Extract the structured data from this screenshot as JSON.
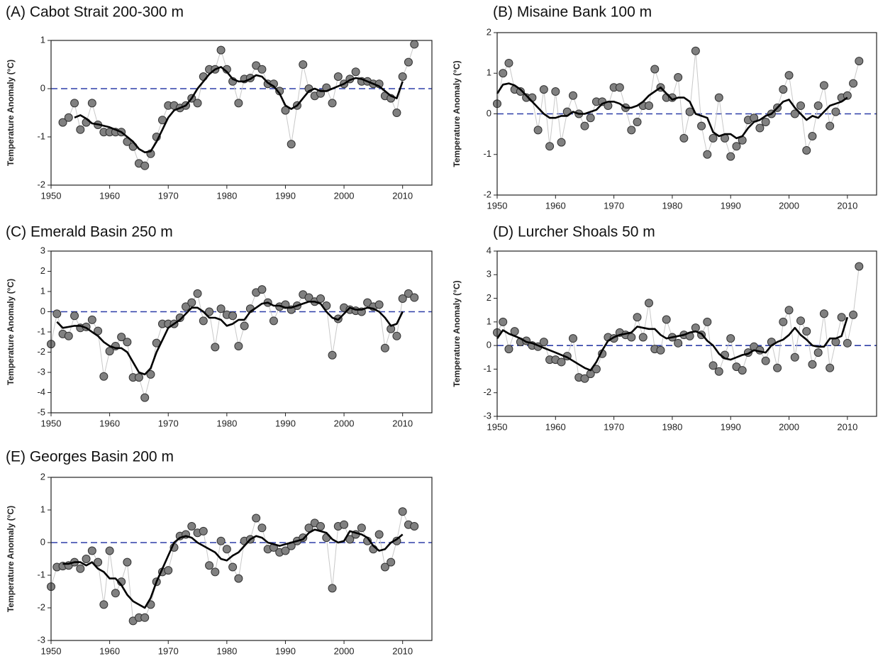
{
  "chart_data": [
    {
      "type": "line",
      "title": "(A) Cabot Strait  200-300 m",
      "y_label": "Temperature Anomaly (°C)",
      "x": [
        1950,
        1951,
        1952,
        1953,
        1954,
        1955,
        1956,
        1957,
        1958,
        1959,
        1960,
        1961,
        1962,
        1963,
        1964,
        1965,
        1966,
        1967,
        1968,
        1969,
        1970,
        1971,
        1972,
        1973,
        1974,
        1975,
        1976,
        1977,
        1978,
        1979,
        1980,
        1981,
        1982,
        1983,
        1984,
        1985,
        1986,
        1987,
        1988,
        1989,
        1990,
        1991,
        1992,
        1993,
        1994,
        1995,
        1996,
        1997,
        1998,
        1999,
        2000,
        2001,
        2002,
        2003,
        2004,
        2005,
        2006,
        2007,
        2008,
        2009,
        2010,
        2011,
        2012
      ],
      "series": [
        {
          "color": "#808080",
          "line_color": "#c8c8c8",
          "values": [
            null,
            null,
            -0.7,
            -0.6,
            -0.3,
            -0.85,
            -0.7,
            -0.3,
            -0.75,
            -0.9,
            -0.9,
            -0.9,
            -0.9,
            -1.1,
            -1.2,
            -1.55,
            -1.6,
            -1.35,
            -1.0,
            -0.65,
            -0.35,
            -0.35,
            -0.4,
            -0.35,
            -0.2,
            -0.3,
            0.25,
            0.4,
            0.4,
            0.8,
            0.4,
            0.15,
            -0.3,
            0.2,
            0.22,
            0.48,
            0.4,
            0.1,
            0.1,
            -0.05,
            -0.45,
            -1.15,
            -0.35,
            0.5,
            0.0,
            -0.15,
            -0.1,
            0.02,
            -0.3,
            0.25,
            0.1,
            0.2,
            0.35,
            0.15,
            0.15,
            0.1,
            0.1,
            -0.15,
            -0.2,
            -0.5,
            0.25,
            0.55,
            0.92
          ]
        },
        {
          "color": "#000000",
          "values": [
            null,
            null,
            null,
            null,
            -0.6,
            -0.55,
            -0.62,
            -0.72,
            -0.74,
            -0.77,
            -0.8,
            -0.85,
            -0.9,
            -1.0,
            -1.1,
            -1.25,
            -1.32,
            -1.3,
            -1.1,
            -0.85,
            -0.6,
            -0.45,
            -0.4,
            -0.35,
            -0.2,
            0.0,
            0.15,
            0.3,
            0.4,
            0.45,
            0.35,
            0.2,
            0.15,
            0.15,
            0.2,
            0.28,
            0.25,
            0.12,
            0.05,
            -0.1,
            -0.35,
            -0.42,
            -0.35,
            -0.2,
            -0.05,
            0.0,
            -0.05,
            -0.05,
            0.0,
            0.05,
            0.1,
            0.18,
            0.22,
            0.2,
            0.15,
            0.1,
            0.05,
            -0.05,
            -0.15,
            -0.2,
            0.15,
            null,
            null
          ]
        }
      ],
      "xlim": [
        1950,
        2015
      ],
      "xticks": [
        1950,
        1960,
        1970,
        1980,
        1990,
        2000,
        2010
      ],
      "ylim": [
        -2,
        1
      ],
      "yticks": [
        -2,
        -1,
        0,
        1
      ],
      "reference_line": 0,
      "reference_color": "#2e3fa8"
    },
    {
      "type": "line",
      "title": "(B) Misaine Bank  100 m",
      "y_label": "Temperature Anomaly (°C)",
      "x": [
        1950,
        1951,
        1952,
        1953,
        1954,
        1955,
        1956,
        1957,
        1958,
        1959,
        1960,
        1961,
        1962,
        1963,
        1964,
        1965,
        1966,
        1967,
        1968,
        1969,
        1970,
        1971,
        1972,
        1973,
        1974,
        1975,
        1976,
        1977,
        1978,
        1979,
        1980,
        1981,
        1982,
        1983,
        1984,
        1985,
        1986,
        1987,
        1988,
        1989,
        1990,
        1991,
        1992,
        1993,
        1994,
        1995,
        1996,
        1997,
        1998,
        1999,
        2000,
        2001,
        2002,
        2003,
        2004,
        2005,
        2006,
        2007,
        2008,
        2009,
        2010,
        2011,
        2012
      ],
      "series": [
        {
          "color": "#808080",
          "line_color": "#c8c8c8",
          "values": [
            0.25,
            1.0,
            1.25,
            0.6,
            0.55,
            0.4,
            0.4,
            -0.4,
            0.6,
            -0.8,
            0.55,
            -0.7,
            0.05,
            0.45,
            0.0,
            -0.3,
            -0.1,
            0.3,
            0.3,
            0.2,
            0.65,
            0.65,
            0.15,
            -0.4,
            -0.2,
            0.2,
            0.2,
            1.1,
            0.65,
            0.4,
            0.4,
            0.9,
            -0.6,
            0.05,
            1.55,
            -0.3,
            -1.0,
            -0.6,
            0.4,
            -0.6,
            -1.05,
            -0.8,
            -0.65,
            -0.15,
            -0.1,
            -0.35,
            -0.2,
            0.0,
            0.15,
            0.6,
            0.95,
            0.0,
            0.2,
            -0.9,
            -0.55,
            0.2,
            0.7,
            -0.3,
            0.05,
            0.4,
            0.45,
            0.75,
            1.3
          ]
        },
        {
          "color": "#000000",
          "values": [
            0.5,
            0.72,
            0.75,
            0.7,
            0.6,
            0.45,
            0.3,
            0.15,
            0.0,
            -0.1,
            -0.1,
            -0.05,
            -0.05,
            0.05,
            0.0,
            0.0,
            0.05,
            0.1,
            0.25,
            0.3,
            0.3,
            0.25,
            0.15,
            0.15,
            0.2,
            0.3,
            0.45,
            0.55,
            0.65,
            0.5,
            0.35,
            0.4,
            0.4,
            0.3,
            0.0,
            -0.05,
            -0.1,
            -0.45,
            -0.55,
            -0.5,
            -0.5,
            -0.6,
            -0.55,
            -0.35,
            -0.2,
            -0.15,
            -0.05,
            0.0,
            0.15,
            0.3,
            0.35,
            0.15,
            0.0,
            -0.15,
            -0.05,
            -0.1,
            0.05,
            0.2,
            0.25,
            0.3,
            0.4,
            null,
            null
          ]
        }
      ],
      "xlim": [
        1950,
        2015
      ],
      "xticks": [
        1950,
        1960,
        1970,
        1980,
        1990,
        2000,
        2010
      ],
      "ylim": [
        -2,
        2
      ],
      "yticks": [
        -2,
        -1,
        0,
        1,
        2
      ],
      "reference_line": 0,
      "reference_color": "#2e3fa8"
    },
    {
      "type": "line",
      "title": "(C) Emerald Basin  250 m",
      "y_label": "Temperature Anomaly (°C)",
      "x": [
        1950,
        1951,
        1952,
        1953,
        1954,
        1955,
        1956,
        1957,
        1958,
        1959,
        1960,
        1961,
        1962,
        1963,
        1964,
        1965,
        1966,
        1967,
        1968,
        1969,
        1970,
        1971,
        1972,
        1973,
        1974,
        1975,
        1976,
        1977,
        1978,
        1979,
        1980,
        1981,
        1982,
        1983,
        1984,
        1985,
        1986,
        1987,
        1988,
        1989,
        1990,
        1991,
        1992,
        1993,
        1994,
        1995,
        1996,
        1997,
        1998,
        1999,
        2000,
        2001,
        2002,
        2003,
        2004,
        2005,
        2006,
        2007,
        2008,
        2009,
        2010,
        2011,
        2012
      ],
      "series": [
        {
          "color": "#808080",
          "line_color": "#c8c8c8",
          "values": [
            -1.6,
            -0.1,
            -1.1,
            -1.2,
            -0.2,
            -0.8,
            -0.75,
            -0.4,
            -0.95,
            -3.2,
            -1.95,
            -1.7,
            -1.25,
            -1.5,
            -3.25,
            -3.25,
            -4.25,
            -3.1,
            -1.55,
            -0.6,
            -0.6,
            -0.6,
            -0.3,
            0.25,
            0.45,
            0.9,
            -0.45,
            0.0,
            -1.75,
            0.15,
            -0.15,
            -0.2,
            -1.7,
            -0.7,
            0.15,
            0.95,
            1.1,
            0.45,
            -0.45,
            0.25,
            0.35,
            0.1,
            0.3,
            0.85,
            0.7,
            0.5,
            0.65,
            0.3,
            -2.15,
            -0.35,
            0.2,
            0.1,
            0.05,
            0.0,
            0.45,
            0.25,
            0.35,
            -1.8,
            -0.85,
            -1.2,
            0.65,
            0.9,
            0.7
          ]
        },
        {
          "color": "#000000",
          "values": [
            null,
            -0.5,
            -0.8,
            -0.75,
            -0.7,
            -0.7,
            -0.8,
            -1.0,
            -1.2,
            -1.5,
            -1.7,
            -1.8,
            -1.8,
            -2.0,
            -2.5,
            -3.0,
            -3.1,
            -2.8,
            -2.0,
            -1.4,
            -0.8,
            -0.6,
            -0.4,
            -0.1,
            0.2,
            0.2,
            0.0,
            -0.3,
            -0.3,
            -0.4,
            -0.7,
            -0.6,
            -0.4,
            -0.4,
            0.0,
            0.2,
            0.4,
            0.45,
            0.3,
            0.3,
            0.2,
            0.2,
            0.3,
            0.4,
            0.5,
            0.5,
            0.4,
            0.0,
            -0.3,
            -0.4,
            -0.1,
            0.2,
            0.1,
            0.1,
            0.2,
            0.15,
            0.0,
            -0.3,
            -0.7,
            -0.6,
            0.0,
            null,
            null
          ]
        }
      ],
      "xlim": [
        1950,
        2015
      ],
      "xticks": [
        1950,
        1960,
        1970,
        1980,
        1990,
        2000,
        2010
      ],
      "ylim": [
        -5,
        3
      ],
      "yticks": [
        -5,
        -4,
        -3,
        -2,
        -1,
        0,
        1,
        2,
        3
      ],
      "reference_line": 0,
      "reference_color": "#2e3fa8"
    },
    {
      "type": "line",
      "title": "(D) Lurcher Shoals  50 m",
      "y_label": "Temperature Anomaly (°C)",
      "x": [
        1950,
        1951,
        1952,
        1953,
        1954,
        1955,
        1956,
        1957,
        1958,
        1959,
        1960,
        1961,
        1962,
        1963,
        1964,
        1965,
        1966,
        1967,
        1968,
        1969,
        1970,
        1971,
        1972,
        1973,
        1974,
        1975,
        1976,
        1977,
        1978,
        1979,
        1980,
        1981,
        1982,
        1983,
        1984,
        1985,
        1986,
        1987,
        1988,
        1989,
        1990,
        1991,
        1992,
        1993,
        1994,
        1995,
        1996,
        1997,
        1998,
        1999,
        2000,
        2001,
        2002,
        2003,
        2004,
        2005,
        2006,
        2007,
        2008,
        2009,
        2010,
        2011,
        2012
      ],
      "series": [
        {
          "color": "#808080",
          "line_color": "#c8c8c8",
          "values": [
            0.55,
            1.0,
            -0.15,
            0.6,
            0.15,
            0.2,
            0.0,
            -0.05,
            0.15,
            -0.6,
            -0.6,
            -0.7,
            -0.45,
            0.3,
            -1.35,
            -1.4,
            -1.2,
            -1.0,
            -0.35,
            0.35,
            0.3,
            0.55,
            0.45,
            0.35,
            1.2,
            0.35,
            1.8,
            -0.15,
            -0.2,
            1.1,
            0.35,
            0.1,
            0.45,
            0.4,
            0.75,
            0.45,
            1.0,
            -0.85,
            -1.1,
            -0.4,
            0.3,
            -0.9,
            -1.05,
            -0.3,
            -0.05,
            -0.2,
            -0.65,
            0.15,
            -0.95,
            1.0,
            1.5,
            -0.5,
            1.05,
            0.6,
            -0.8,
            -0.3,
            1.35,
            -0.95,
            0.15,
            1.2,
            0.1,
            1.3,
            3.35
          ]
        },
        {
          "color": "#000000",
          "values": [
            0.3,
            0.65,
            0.5,
            0.4,
            0.3,
            0.15,
            0.1,
            0.0,
            -0.1,
            -0.2,
            -0.3,
            -0.4,
            -0.5,
            -0.65,
            -0.8,
            -0.95,
            -1.05,
            -0.7,
            -0.2,
            0.2,
            0.35,
            0.45,
            0.5,
            0.55,
            0.8,
            0.75,
            0.7,
            0.7,
            0.45,
            0.3,
            0.35,
            0.4,
            0.45,
            0.55,
            0.6,
            0.5,
            0.2,
            0.0,
            -0.35,
            -0.55,
            -0.6,
            -0.5,
            -0.4,
            -0.35,
            -0.2,
            -0.25,
            -0.3,
            0.0,
            0.15,
            0.25,
            0.45,
            0.75,
            0.45,
            0.25,
            0.0,
            -0.05,
            -0.05,
            0.3,
            0.3,
            0.4,
            1.2,
            null,
            null
          ]
        }
      ],
      "xlim": [
        1950,
        2015
      ],
      "xticks": [
        1950,
        1960,
        1970,
        1980,
        1990,
        2000,
        2010
      ],
      "ylim": [
        -3,
        4
      ],
      "yticks": [
        -3,
        -2,
        -1,
        0,
        1,
        2,
        3,
        4
      ],
      "reference_line": 0,
      "reference_color": "#2e3fa8"
    },
    {
      "type": "line",
      "title": "(E) Georges  Basin  200 m",
      "y_label": "Temperature Anomaly (°C)",
      "x": [
        1950,
        1951,
        1952,
        1953,
        1954,
        1955,
        1956,
        1957,
        1958,
        1959,
        1960,
        1961,
        1962,
        1963,
        1964,
        1965,
        1966,
        1967,
        1968,
        1969,
        1970,
        1971,
        1972,
        1973,
        1974,
        1975,
        1976,
        1977,
        1978,
        1979,
        1980,
        1981,
        1982,
        1983,
        1984,
        1985,
        1986,
        1987,
        1988,
        1989,
        1990,
        1991,
        1992,
        1993,
        1994,
        1995,
        1996,
        1997,
        1998,
        1999,
        2000,
        2001,
        2002,
        2003,
        2004,
        2005,
        2006,
        2007,
        2008,
        2009,
        2010,
        2011,
        2012
      ],
      "series": [
        {
          "color": "#808080",
          "line_color": "#c8c8c8",
          "values": [
            -1.35,
            -0.75,
            -0.72,
            -0.7,
            -0.6,
            -0.8,
            -0.5,
            -0.25,
            -0.6,
            -1.9,
            -0.25,
            -1.55,
            -1.2,
            -0.6,
            -2.4,
            -2.3,
            -2.3,
            -1.9,
            -1.2,
            -0.9,
            -0.85,
            -0.15,
            0.2,
            0.25,
            0.5,
            0.3,
            0.35,
            -0.7,
            -0.9,
            0.05,
            -0.2,
            -0.75,
            -1.1,
            0.05,
            0.1,
            0.75,
            0.45,
            -0.2,
            -0.15,
            -0.3,
            -0.25,
            -0.1,
            0.05,
            0.15,
            0.45,
            0.6,
            0.5,
            0.15,
            -1.4,
            0.5,
            0.55,
            0.1,
            0.25,
            0.45,
            0.05,
            -0.2,
            0.25,
            -0.75,
            -0.6,
            0.05,
            0.95,
            0.55,
            0.5
          ]
        },
        {
          "color": "#000000",
          "values": [
            null,
            null,
            -0.65,
            -0.65,
            -0.6,
            -0.6,
            -0.7,
            -0.6,
            -0.8,
            -0.9,
            -1.1,
            -1.1,
            -1.3,
            -1.6,
            -1.8,
            -1.9,
            -2.0,
            -1.7,
            -1.2,
            -0.8,
            -0.4,
            0.0,
            0.15,
            0.2,
            0.15,
            0.0,
            -0.1,
            -0.2,
            -0.3,
            -0.5,
            -0.55,
            -0.4,
            -0.3,
            -0.1,
            0.1,
            0.2,
            0.15,
            0.0,
            -0.05,
            -0.1,
            -0.05,
            0.0,
            0.05,
            0.1,
            0.3,
            0.4,
            0.35,
            0.3,
            0.1,
            0.0,
            0.05,
            0.35,
            0.3,
            0.25,
            0.15,
            -0.1,
            -0.25,
            -0.2,
            0.0,
            0.1,
            0.25,
            null,
            null
          ]
        }
      ],
      "xlim": [
        1950,
        2015
      ],
      "xticks": [
        1950,
        1960,
        1970,
        1980,
        1990,
        2000,
        2010
      ],
      "ylim": [
        -3,
        2
      ],
      "yticks": [
        -3,
        -2,
        -1,
        0,
        1,
        2
      ],
      "reference_line": 0,
      "reference_color": "#2e3fa8"
    }
  ]
}
